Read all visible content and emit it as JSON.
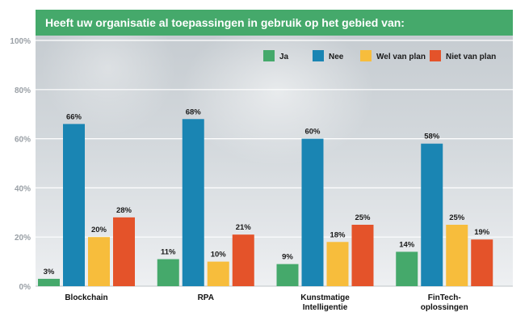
{
  "title": "Heeft uw organisatie al toepassingen in gebruik op het gebied van:",
  "chart_data": {
    "type": "bar",
    "categories": [
      [
        "Blockchain"
      ],
      [
        "RPA"
      ],
      [
        "Kunstmatige",
        "Intelligentie"
      ],
      [
        "FinTech-",
        "oplossingen"
      ]
    ],
    "series": [
      {
        "name": "Ja",
        "color": "#45a96b",
        "values": [
          3,
          11,
          9,
          14
        ],
        "labels": [
          "3%",
          "11%",
          "9%",
          "14%"
        ]
      },
      {
        "name": "Nee",
        "color": "#1a85b3",
        "values": [
          66,
          68,
          60,
          58
        ],
        "labels": [
          "66%",
          "68%",
          "60%",
          "58%"
        ]
      },
      {
        "name": "Wel van plan",
        "color": "#f7bd3c",
        "values": [
          20,
          10,
          18,
          25
        ],
        "labels": [
          "20%",
          "10%",
          "18%",
          "25%"
        ]
      },
      {
        "name": "Niet van plan",
        "color": "#e4532a",
        "values": [
          28,
          21,
          25,
          19
        ],
        "labels": [
          "28%",
          "21%",
          "25%",
          "19%"
        ]
      }
    ],
    "ylim": [
      0,
      100
    ],
    "yticks": [
      "0%",
      "20%",
      "40%",
      "60%",
      "80%",
      "100%"
    ],
    "legend_position": "top-right",
    "grid": true
  }
}
